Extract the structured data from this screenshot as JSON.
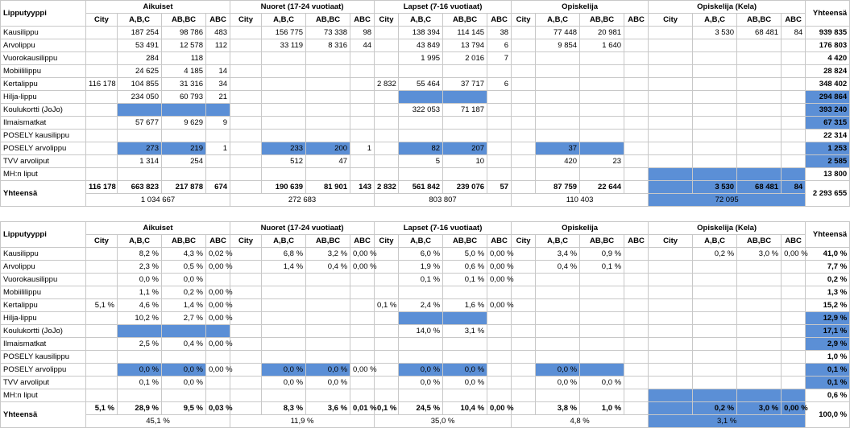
{
  "tables": [
    {
      "type_label": "Lipputyyppi",
      "groups": [
        "Aikuiset",
        "Nuoret (17-24 vuotiaat)",
        "Lapset (7-16 vuotiaat)",
        "Opiskelija",
        "Opiskelija (Kela)"
      ],
      "total_label": "Yhteensä",
      "subheaders": [
        [
          "City",
          "A,B,C",
          "AB,BC",
          "ABC"
        ],
        [
          "City",
          "A,B,C",
          "AB,BC",
          "ABC"
        ],
        [
          "City",
          "A,B,C",
          "AB,BC",
          "ABC"
        ],
        [
          "City",
          "A,B,C",
          "AB,BC",
          "ABC"
        ],
        [
          "City",
          "A,B,C",
          "AB,BC",
          "ABC"
        ]
      ],
      "rows": [
        {
          "label": "Kausilippu",
          "cells": [
            "",
            "187 254",
            "98 786",
            "483",
            "",
            "156 775",
            "73 338",
            "98",
            "",
            "138 394",
            "114 145",
            "38",
            "",
            "77 448",
            "20 981",
            "",
            "",
            "3 530",
            "68 481",
            "84"
          ],
          "total": "939 835"
        },
        {
          "label": "Arvolippu",
          "cells": [
            "",
            "53 491",
            "12 578",
            "112",
            "",
            "33 119",
            "8 316",
            "44",
            "",
            "43 849",
            "13 794",
            "6",
            "",
            "9 854",
            "1 640",
            "",
            "",
            "",
            "",
            ""
          ],
          "total": "176 803"
        },
        {
          "label": "Vuorokausilippu",
          "cells": [
            "",
            "284",
            "118",
            "",
            "",
            "",
            "",
            "",
            "",
            "1 995",
            "2 016",
            "7",
            "",
            "",
            "",
            "",
            "",
            "",
            "",
            ""
          ],
          "total": "4 420"
        },
        {
          "label": "Mobiililippu",
          "cells": [
            "",
            "24 625",
            "4 185",
            "14",
            "",
            "",
            "",
            "",
            "",
            "",
            "",
            "",
            "",
            "",
            "",
            "",
            "",
            "",
            "",
            ""
          ],
          "total": "28 824"
        },
        {
          "label": "Kertalippu",
          "cells": [
            "116 178",
            "104 855",
            "31 316",
            "34",
            "",
            "",
            "",
            "",
            "2 832",
            "55 464",
            "37 717",
            "6",
            "",
            "",
            "",
            "",
            "",
            "",
            "",
            ""
          ],
          "total": "348 402"
        },
        {
          "label": "Hilja-lippu",
          "cells": [
            "",
            "234 050",
            "60 793",
            "21",
            "",
            "",
            "",
            "",
            "",
            "",
            "",
            "",
            "",
            "",
            "",
            "",
            "",
            "",
            "",
            ""
          ],
          "total": "294 864"
        },
        {
          "label": "Koulukortti (JoJo)",
          "cells": [
            "",
            "",
            "",
            "",
            "",
            "",
            "",
            "",
            "",
            "322 053",
            "71 187",
            "",
            "",
            "",
            "",
            "",
            "",
            "",
            "",
            ""
          ],
          "total": "393 240"
        },
        {
          "label": "Ilmaismatkat",
          "cells": [
            "",
            "57 677",
            "9 629",
            "9",
            "",
            "",
            "",
            "",
            "",
            "",
            "",
            "",
            "",
            "",
            "",
            "",
            "",
            "",
            "",
            ""
          ],
          "total": "67 315"
        },
        {
          "label": "POSELY kausilippu",
          "cells": [
            "",
            "",
            "",
            "",
            "",
            "",
            "",
            "",
            "",
            "",
            "",
            "",
            "",
            "",
            "",
            "",
            "",
            "",
            "",
            ""
          ],
          "total": "22 314"
        },
        {
          "label": "POSELY arvolippu",
          "cells": [
            "",
            "273",
            "219",
            "1",
            "",
            "233",
            "200",
            "1",
            "",
            "82",
            "207",
            "",
            "",
            "37",
            "",
            "",
            "",
            "",
            "",
            ""
          ],
          "total": "1 253"
        },
        {
          "label": "TVV arvoliput",
          "cells": [
            "",
            "1 314",
            "254",
            "",
            "",
            "512",
            "47",
            "",
            "",
            "5",
            "10",
            "",
            "",
            "420",
            "23",
            "",
            "",
            "",
            "",
            ""
          ],
          "total": "2 585"
        },
        {
          "label": "MH:n liput",
          "cells": [
            "",
            "",
            "",
            "",
            "",
            "",
            "",
            "",
            "",
            "",
            "",
            "",
            "",
            "",
            "",
            "",
            "",
            "",
            "",
            ""
          ],
          "total": "13 800"
        }
      ],
      "totals_row": {
        "label": "Yhteensä",
        "cells": [
          "116 178",
          "663 823",
          "217 878",
          "674",
          "",
          "190 639",
          "81 901",
          "143",
          "2 832",
          "561 842",
          "239 076",
          "57",
          "",
          "87 759",
          "22 644",
          "",
          "",
          "3 530",
          "68 481",
          "84"
        ],
        "total": "2 293 655"
      },
      "group_totals": [
        "1 034 667",
        "272 683",
        "803 807",
        "110 403",
        "72 095"
      ]
    },
    {
      "type_label": "Lipputyyppi",
      "groups": [
        "Aikuiset",
        "Nuoret (17-24 vuotiaat)",
        "Lapset (7-16 vuotiaat)",
        "Opiskelija",
        "Opiskelija (Kela)"
      ],
      "total_label": "Yhteensä",
      "subheaders": [
        [
          "City",
          "A,B,C",
          "AB,BC",
          "ABC"
        ],
        [
          "City",
          "A,B,C",
          "AB,BC",
          "ABC"
        ],
        [
          "City",
          "A,B,C",
          "AB,BC",
          "ABC"
        ],
        [
          "City",
          "A,B,C",
          "AB,BC",
          "ABC"
        ],
        [
          "City",
          "A,B,C",
          "AB,BC",
          "ABC"
        ]
      ],
      "rows": [
        {
          "label": "Kausilippu",
          "cells": [
            "",
            "8,2 %",
            "4,3 %",
            "0,02 %",
            "",
            "6,8 %",
            "3,2 %",
            "0,00 %",
            "",
            "6,0 %",
            "5,0 %",
            "0,00 %",
            "",
            "3,4 %",
            "0,9 %",
            "",
            "",
            "0,2 %",
            "3,0 %",
            "0,00 %"
          ],
          "total": "41,0 %"
        },
        {
          "label": "Arvolippu",
          "cells": [
            "",
            "2,3 %",
            "0,5 %",
            "0,00 %",
            "",
            "1,4 %",
            "0,4 %",
            "0,00 %",
            "",
            "1,9 %",
            "0,6 %",
            "0,00 %",
            "",
            "0,4 %",
            "0,1 %",
            "",
            "",
            "",
            "",
            ""
          ],
          "total": "7,7 %"
        },
        {
          "label": "Vuorokausilippu",
          "cells": [
            "",
            "0,0 %",
            "0,0 %",
            "",
            "",
            "",
            "",
            "",
            "",
            "0,1 %",
            "0,1 %",
            "0,00 %",
            "",
            "",
            "",
            "",
            "",
            "",
            "",
            ""
          ],
          "total": "0,2 %"
        },
        {
          "label": "Mobiililippu",
          "cells": [
            "",
            "1,1 %",
            "0,2 %",
            "0,00 %",
            "",
            "",
            "",
            "",
            "",
            "",
            "",
            "",
            "",
            "",
            "",
            "",
            "",
            "",
            "",
            ""
          ],
          "total": "1,3 %"
        },
        {
          "label": "Kertalippu",
          "cells": [
            "5,1 %",
            "4,6 %",
            "1,4 %",
            "0,00 %",
            "",
            "",
            "",
            "",
            "0,1 %",
            "2,4 %",
            "1,6 %",
            "0,00 %",
            "",
            "",
            "",
            "",
            "",
            "",
            "",
            ""
          ],
          "total": "15,2 %"
        },
        {
          "label": "Hilja-lippu",
          "cells": [
            "",
            "10,2 %",
            "2,7 %",
            "0,00 %",
            "",
            "",
            "",
            "",
            "",
            "",
            "",
            "",
            "",
            "",
            "",
            "",
            "",
            "",
            "",
            ""
          ],
          "total": "12,9 %"
        },
        {
          "label": "Koulukortti (JoJo)",
          "cells": [
            "",
            "",
            "",
            "",
            "",
            "",
            "",
            "",
            "",
            "14,0 %",
            "3,1 %",
            "",
            "",
            "",
            "",
            "",
            "",
            "",
            "",
            ""
          ],
          "total": "17,1 %"
        },
        {
          "label": "Ilmaismatkat",
          "cells": [
            "",
            "2,5 %",
            "0,4 %",
            "0,00 %",
            "",
            "",
            "",
            "",
            "",
            "",
            "",
            "",
            "",
            "",
            "",
            "",
            "",
            "",
            "",
            ""
          ],
          "total": "2,9 %"
        },
        {
          "label": "POSELY kausilippu",
          "cells": [
            "",
            "",
            "",
            "",
            "",
            "",
            "",
            "",
            "",
            "",
            "",
            "",
            "",
            "",
            "",
            "",
            "",
            "",
            "",
            ""
          ],
          "total": "1,0 %"
        },
        {
          "label": "POSELY arvolippu",
          "cells": [
            "",
            "0,0 %",
            "0,0 %",
            "0,00 %",
            "",
            "0,0 %",
            "0,0 %",
            "0,00 %",
            "",
            "0,0 %",
            "0,0 %",
            "",
            "",
            "0,0 %",
            "",
            "",
            "",
            "",
            "",
            ""
          ],
          "total": "0,1 %"
        },
        {
          "label": "TVV arvoliput",
          "cells": [
            "",
            "0,1 %",
            "0,0 %",
            "",
            "",
            "0,0 %",
            "0,0 %",
            "",
            "",
            "0,0 %",
            "0,0 %",
            "",
            "",
            "0,0 %",
            "0,0 %",
            "",
            "",
            "",
            "",
            ""
          ],
          "total": "0,1 %"
        },
        {
          "label": "MH:n liput",
          "cells": [
            "",
            "",
            "",
            "",
            "",
            "",
            "",
            "",
            "",
            "",
            "",
            "",
            "",
            "",
            "",
            "",
            "",
            "",
            "",
            ""
          ],
          "total": "0,6 %"
        }
      ],
      "totals_row": {
        "label": "Yhteensä",
        "cells": [
          "5,1 %",
          "28,9 %",
          "9,5 %",
          "0,03 %",
          "",
          "8,3 %",
          "3,6 %",
          "0,01 %",
          "0,1 %",
          "24,5 %",
          "10,4 %",
          "0,00 %",
          "",
          "3,8 %",
          "1,0 %",
          "",
          "",
          "0,2 %",
          "3,0 %",
          "0,00 %"
        ],
        "total": "100,0 %"
      },
      "group_totals": [
        "45,1 %",
        "11,9 %",
        "35,0 %",
        "4,8 %",
        "3,1 %"
      ]
    }
  ],
  "colors": {
    "highlight": "#5b8fd6",
    "grid": "#c8c8c8",
    "text": "#000000"
  }
}
